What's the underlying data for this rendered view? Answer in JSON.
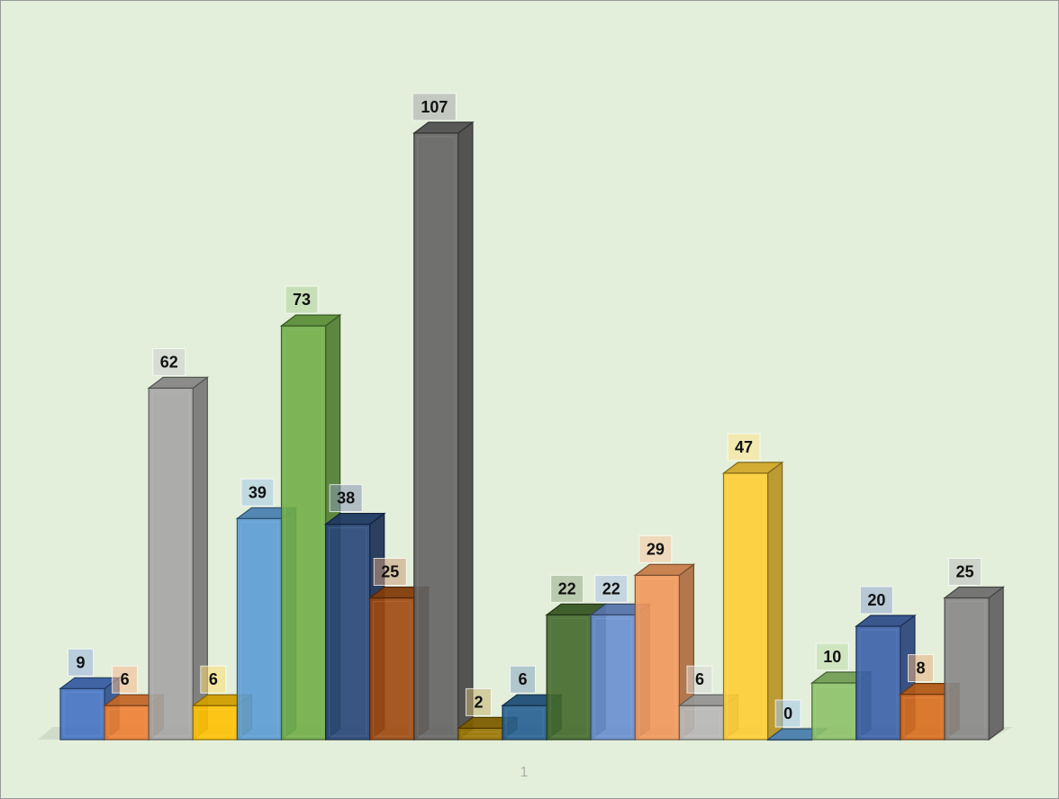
{
  "chart_data": {
    "type": "bar",
    "categories": [
      "1"
    ],
    "series": [
      {
        "values": [
          9
        ],
        "color": "#4472c4"
      },
      {
        "values": [
          6
        ],
        "color": "#ed7d31"
      },
      {
        "values": [
          62
        ],
        "color": "#a5a5a5"
      },
      {
        "values": [
          6
        ],
        "color": "#ffc000"
      },
      {
        "values": [
          39
        ],
        "color": "#5b9bd5"
      },
      {
        "values": [
          73
        ],
        "color": "#70ad47"
      },
      {
        "values": [
          38
        ],
        "color": "#264478"
      },
      {
        "values": [
          25
        ],
        "color": "#9e480e"
      },
      {
        "values": [
          107
        ],
        "color": "#636363"
      },
      {
        "values": [
          2
        ],
        "color": "#997300"
      },
      {
        "values": [
          6
        ],
        "color": "#255e91"
      },
      {
        "values": [
          22
        ],
        "color": "#43682b"
      },
      {
        "values": [
          22
        ],
        "color": "#698ed0"
      },
      {
        "values": [
          29
        ],
        "color": "#f1975a"
      },
      {
        "values": [
          6
        ],
        "color": "#b7b7b7"
      },
      {
        "values": [
          47
        ],
        "color": "#ffcd33"
      },
      {
        "values": [
          0
        ],
        "color": "#5b9bd5"
      },
      {
        "values": [
          10
        ],
        "color": "#8cc168"
      },
      {
        "values": [
          20
        ],
        "color": "#3a5fa8"
      },
      {
        "values": [
          8
        ],
        "color": "#d96b1c"
      },
      {
        "values": [
          25
        ],
        "color": "#878787"
      }
    ],
    "title": "",
    "xlabel": "",
    "ylabel": "",
    "ylim": [
      0,
      110
    ],
    "grid": false,
    "legend": "none",
    "data_labels": true,
    "style": "3d-column"
  }
}
